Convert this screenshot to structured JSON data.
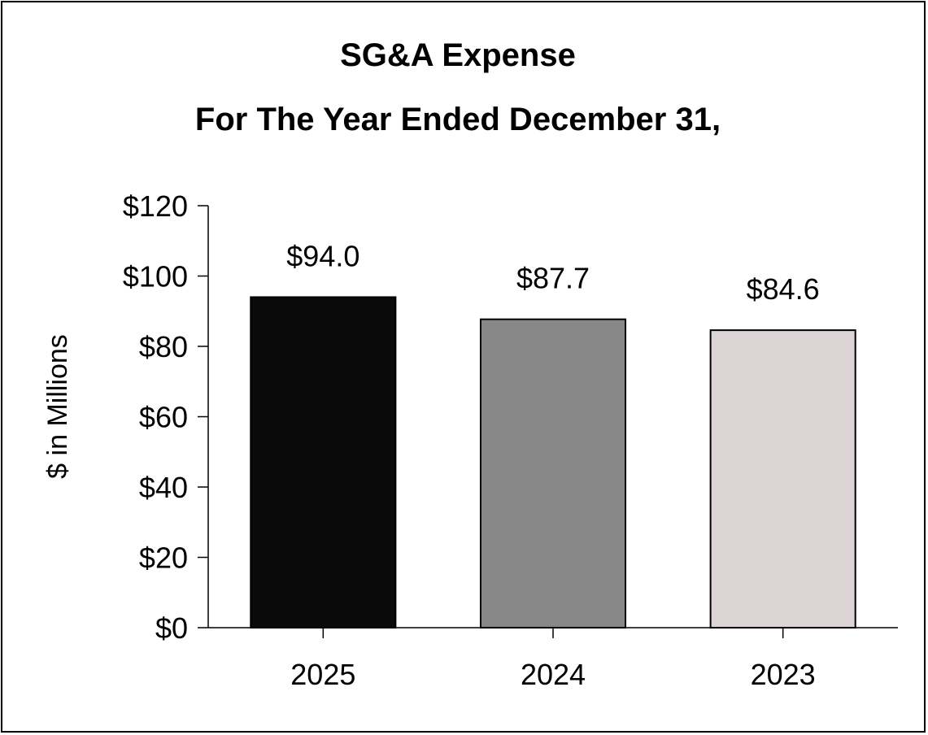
{
  "chart_data": {
    "type": "bar",
    "title": "SG&A Expense",
    "subtitle": "For The Year Ended December 31,",
    "xlabel": "",
    "ylabel": "$ in Millions",
    "categories": [
      "2025",
      "2024",
      "2023"
    ],
    "values": [
      94.0,
      87.7,
      84.6
    ],
    "data_labels": [
      "$94.0",
      "$87.7",
      "$84.6"
    ],
    "bar_colors": [
      "#0a0a0a",
      "#878787",
      "#ddd5d5"
    ],
    "ylim": [
      0,
      120
    ],
    "yticks": [
      0,
      20,
      40,
      60,
      80,
      100,
      120
    ],
    "ytick_labels": [
      "$0",
      "$20",
      "$40",
      "$60",
      "$80",
      "$100",
      "$120"
    ],
    "grid": false,
    "legend": "none"
  }
}
